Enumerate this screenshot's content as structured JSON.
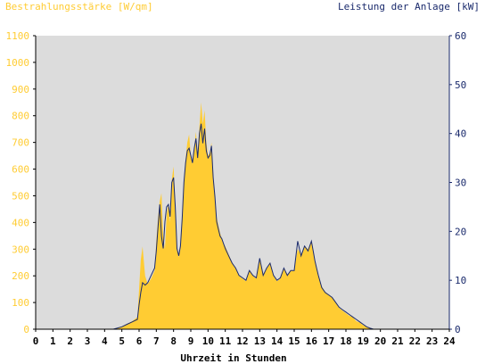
{
  "colors": {
    "irradiance": "#FFCC33",
    "power": "#1A2A6C",
    "plot_bg": "#DCDCDC",
    "axis_text_left": "#FFCC33",
    "axis_text_right": "#1A2A6C"
  },
  "chart_data": {
    "type": "area",
    "title_left": "Bestrahlungsstärke [W/qm]",
    "title_right": "Leistung der Anlage [kW]",
    "xlabel": "Uhrzeit in Stunden",
    "xlim": [
      0,
      24
    ],
    "x_ticks": [
      0,
      1,
      2,
      3,
      4,
      5,
      6,
      7,
      8,
      9,
      10,
      11,
      12,
      13,
      14,
      15,
      16,
      17,
      18,
      19,
      20,
      21,
      22,
      23,
      24
    ],
    "ylim_left": [
      0,
      1100
    ],
    "y_ticks_left": [
      0,
      100,
      200,
      300,
      400,
      500,
      600,
      700,
      800,
      900,
      1000,
      1100
    ],
    "ylim_right": [
      0,
      60
    ],
    "y_ticks_right": [
      0,
      10,
      20,
      30,
      40,
      50,
      60
    ],
    "grid": false,
    "series": [
      {
        "name": "Bestrahlungsstärke [W/qm]",
        "axis": "left",
        "style": "filled-area",
        "x": [
          0,
          4.5,
          5.0,
          5.3,
          5.6,
          5.9,
          6.0,
          6.1,
          6.2,
          6.35,
          6.5,
          6.7,
          6.9,
          7.0,
          7.1,
          7.2,
          7.3,
          7.4,
          7.5,
          7.6,
          7.7,
          7.8,
          7.9,
          8.0,
          8.1,
          8.2,
          8.3,
          8.4,
          8.5,
          8.6,
          8.7,
          8.8,
          8.9,
          9.0,
          9.1,
          9.2,
          9.3,
          9.4,
          9.5,
          9.6,
          9.7,
          9.8,
          9.9,
          10.0,
          10.1,
          10.2,
          10.3,
          10.4,
          10.5,
          10.6,
          10.7,
          10.8,
          10.9,
          11.0,
          11.2,
          11.4,
          11.6,
          11.8,
          12.0,
          12.2,
          12.4,
          12.6,
          12.8,
          13.0,
          13.2,
          13.4,
          13.6,
          13.8,
          14.0,
          14.2,
          14.4,
          14.6,
          14.8,
          15.0,
          15.2,
          15.4,
          15.6,
          15.8,
          16.0,
          16.1,
          16.2,
          16.3,
          16.4,
          16.6,
          16.8,
          17.0,
          17.2,
          17.4,
          17.6,
          17.8,
          18.0,
          18.2,
          18.4,
          18.6,
          18.8,
          19.0,
          19.2,
          19.4,
          19.6,
          19.8,
          24
        ],
        "values": [
          0,
          0,
          10,
          20,
          30,
          45,
          150,
          260,
          310,
          200,
          170,
          190,
          220,
          330,
          420,
          480,
          510,
          350,
          300,
          430,
          470,
          400,
          560,
          610,
          470,
          300,
          270,
          300,
          420,
          560,
          640,
          700,
          730,
          650,
          620,
          680,
          740,
          650,
          760,
          850,
          770,
          820,
          700,
          650,
          660,
          700,
          560,
          500,
          420,
          390,
          360,
          340,
          320,
          310,
          280,
          250,
          230,
          200,
          190,
          180,
          220,
          200,
          190,
          260,
          200,
          230,
          250,
          200,
          180,
          190,
          230,
          200,
          220,
          220,
          300,
          280,
          310,
          300,
          330,
          290,
          260,
          230,
          200,
          160,
          140,
          130,
          120,
          100,
          80,
          70,
          60,
          50,
          45,
          30,
          25,
          15,
          10,
          5,
          0,
          0,
          0
        ]
      },
      {
        "name": "Leistung der Anlage [kW]",
        "axis": "right",
        "style": "line",
        "x": [
          0,
          4.5,
          5.0,
          5.3,
          5.6,
          5.9,
          6.0,
          6.1,
          6.2,
          6.35,
          6.5,
          6.7,
          6.9,
          7.0,
          7.1,
          7.2,
          7.3,
          7.4,
          7.5,
          7.6,
          7.7,
          7.8,
          7.9,
          8.0,
          8.1,
          8.2,
          8.3,
          8.4,
          8.5,
          8.6,
          8.7,
          8.8,
          8.9,
          9.0,
          9.1,
          9.2,
          9.3,
          9.4,
          9.5,
          9.6,
          9.7,
          9.8,
          9.9,
          10.0,
          10.1,
          10.2,
          10.3,
          10.4,
          10.5,
          10.6,
          10.7,
          10.8,
          10.9,
          11.0,
          11.2,
          11.4,
          11.6,
          11.8,
          12.0,
          12.2,
          12.4,
          12.6,
          12.8,
          13.0,
          13.2,
          13.4,
          13.6,
          13.8,
          14.0,
          14.2,
          14.4,
          14.6,
          14.8,
          15.0,
          15.2,
          15.4,
          15.6,
          15.8,
          16.0,
          16.1,
          16.2,
          16.3,
          16.4,
          16.6,
          16.8,
          17.0,
          17.2,
          17.4,
          17.6,
          17.8,
          18.0,
          18.2,
          18.4,
          18.6,
          18.8,
          19.0,
          19.2,
          19.4,
          19.6,
          19.8,
          24
        ],
        "values": [
          0,
          0,
          0.5,
          1.0,
          1.5,
          2.0,
          5.0,
          7.5,
          9.5,
          9.0,
          9.5,
          11.0,
          12.5,
          16.0,
          21.0,
          25.5,
          19.0,
          16.5,
          22.0,
          25.0,
          25.5,
          23.0,
          30.0,
          31.0,
          25.0,
          16.5,
          15.0,
          17.0,
          22.5,
          30.0,
          34.0,
          36.5,
          37.0,
          35.5,
          34.0,
          37.0,
          39.0,
          35.0,
          40.0,
          42.0,
          38.0,
          41.0,
          36.5,
          35.0,
          35.5,
          37.5,
          31.0,
          27.0,
          22.0,
          20.5,
          19.0,
          18.5,
          17.5,
          16.5,
          15.0,
          13.5,
          12.5,
          11.0,
          10.5,
          10.0,
          12.0,
          11.0,
          10.5,
          14.5,
          11.0,
          12.5,
          13.5,
          11.0,
          10.0,
          10.5,
          12.5,
          11.0,
          12.0,
          12.0,
          18.0,
          15.0,
          17.0,
          16.0,
          18.0,
          16.0,
          14.0,
          12.5,
          11.0,
          8.5,
          7.5,
          7.0,
          6.5,
          5.5,
          4.5,
          4.0,
          3.5,
          3.0,
          2.5,
          2.0,
          1.5,
          1.0,
          0.5,
          0.2,
          0,
          0,
          0
        ]
      }
    ]
  }
}
